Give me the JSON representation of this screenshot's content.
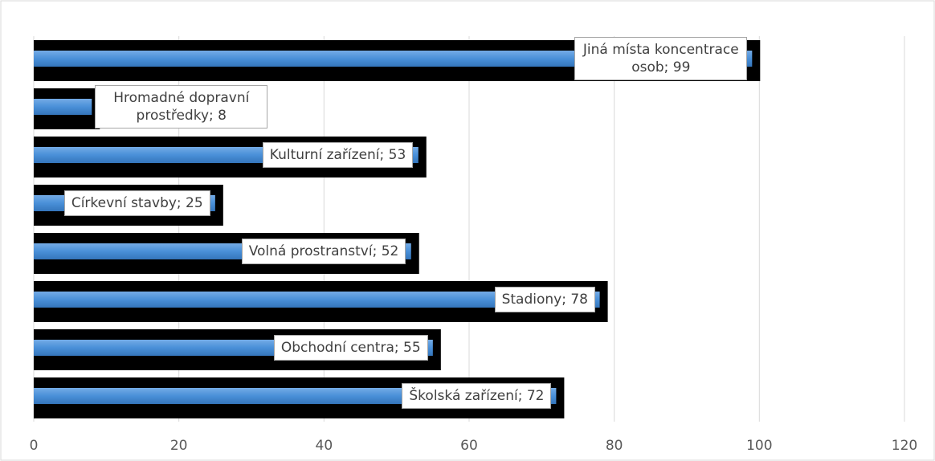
{
  "chart_data": {
    "type": "bar",
    "orientation": "horizontal",
    "values": [
      99,
      8,
      53,
      25,
      52,
      78,
      55,
      72
    ],
    "value_labels": [
      "Jiná místa koncentrace osob; 99",
      "Hromadné dopravní prostředky; 8",
      "Kulturní zařízení; 53",
      "Církevní stavby; 25",
      "Volná prostranství; 52",
      "Stadiony; 78",
      "Obchodní centra; 55",
      "Školská zařízení; 72"
    ],
    "color": "#4a90d9",
    "shadow_color": "#000000",
    "xlim": [
      0,
      120
    ],
    "xticks": [
      0,
      20,
      40,
      60,
      80,
      100,
      120
    ],
    "grid": true
  }
}
